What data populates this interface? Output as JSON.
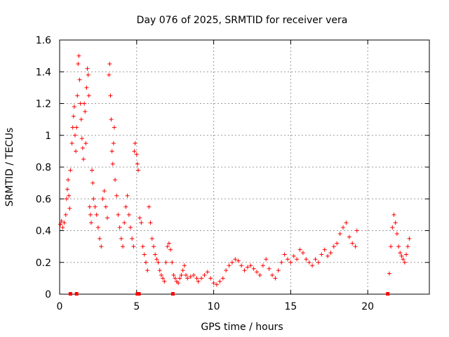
{
  "chart_data": {
    "type": "scatter",
    "title": "Day 076 of 2025, SRMTID for receiver vera",
    "xlabel": "GPS time / hours",
    "ylabel": "SRMTID / TECUs",
    "xlim": [
      0,
      24
    ],
    "ylim": [
      0,
      1.6
    ],
    "xticks": [
      0,
      5,
      10,
      15,
      20
    ],
    "yticks": [
      0,
      0.2,
      0.4,
      0.6,
      0.8,
      1,
      1.2,
      1.4,
      1.6
    ],
    "xtick_labels": [
      "0",
      "5",
      "10",
      "15",
      "20"
    ],
    "ytick_labels": [
      "0",
      "0.2",
      "0.4",
      "0.6",
      "0.8",
      "1",
      "1.2",
      "1.4",
      "1.6"
    ],
    "grid": true,
    "marker": "+",
    "color": "#ff0000",
    "series": [
      {
        "name": "SRMTID",
        "points": [
          [
            0.05,
            0.44
          ],
          [
            0.12,
            0.46
          ],
          [
            0.2,
            0.42
          ],
          [
            0.3,
            0.45
          ],
          [
            0.4,
            0.5
          ],
          [
            0.45,
            0.6
          ],
          [
            0.5,
            0.66
          ],
          [
            0.55,
            0.72
          ],
          [
            0.6,
            0.62
          ],
          [
            0.65,
            0.54
          ],
          [
            0.7,
            0.78
          ],
          [
            0.8,
            0.95
          ],
          [
            0.85,
            1.05
          ],
          [
            0.9,
            1.12
          ],
          [
            0.95,
            1.18
          ],
          [
            1.0,
            1.0
          ],
          [
            1.05,
            0.9
          ],
          [
            1.1,
            1.05
          ],
          [
            1.15,
            1.25
          ],
          [
            1.2,
            1.45
          ],
          [
            1.25,
            1.5
          ],
          [
            1.3,
            1.35
          ],
          [
            1.35,
            1.2
          ],
          [
            1.4,
            1.1
          ],
          [
            1.45,
            0.98
          ],
          [
            1.5,
            0.92
          ],
          [
            1.55,
            0.85
          ],
          [
            1.6,
            1.2
          ],
          [
            1.65,
            1.15
          ],
          [
            1.7,
            0.95
          ],
          [
            1.75,
            1.3
          ],
          [
            1.8,
            1.42
          ],
          [
            1.85,
            1.38
          ],
          [
            1.9,
            1.25
          ],
          [
            1.95,
            0.55
          ],
          [
            2.0,
            0.5
          ],
          [
            2.05,
            0.45
          ],
          [
            2.1,
            0.78
          ],
          [
            2.15,
            0.7
          ],
          [
            2.2,
            0.6
          ],
          [
            2.3,
            0.55
          ],
          [
            2.4,
            0.5
          ],
          [
            2.5,
            0.42
          ],
          [
            2.6,
            0.35
          ],
          [
            2.7,
            0.3
          ],
          [
            2.8,
            0.6
          ],
          [
            2.9,
            0.65
          ],
          [
            3.0,
            0.55
          ],
          [
            3.1,
            0.48
          ],
          [
            3.2,
            1.38
          ],
          [
            3.25,
            1.45
          ],
          [
            3.3,
            1.25
          ],
          [
            3.35,
            1.1
          ],
          [
            3.4,
            0.9
          ],
          [
            3.45,
            0.82
          ],
          [
            3.5,
            0.95
          ],
          [
            3.55,
            1.05
          ],
          [
            3.6,
            0.72
          ],
          [
            3.7,
            0.62
          ],
          [
            3.8,
            0.5
          ],
          [
            3.9,
            0.42
          ],
          [
            4.0,
            0.35
          ],
          [
            4.1,
            0.3
          ],
          [
            4.2,
            0.45
          ],
          [
            4.3,
            0.55
          ],
          [
            4.4,
            0.62
          ],
          [
            4.5,
            0.5
          ],
          [
            4.6,
            0.42
          ],
          [
            4.7,
            0.35
          ],
          [
            4.8,
            0.3
          ],
          [
            4.85,
            0.9
          ],
          [
            4.9,
            0.95
          ],
          [
            5.0,
            0.88
          ],
          [
            5.05,
            0.82
          ],
          [
            5.1,
            0.78
          ],
          [
            5.2,
            0.48
          ],
          [
            5.3,
            0.45
          ],
          [
            5.4,
            0.3
          ],
          [
            5.5,
            0.25
          ],
          [
            5.6,
            0.2
          ],
          [
            5.7,
            0.15
          ],
          [
            5.8,
            0.55
          ],
          [
            5.9,
            0.45
          ],
          [
            6.0,
            0.35
          ],
          [
            6.1,
            0.3
          ],
          [
            6.2,
            0.25
          ],
          [
            6.3,
            0.22
          ],
          [
            6.4,
            0.2
          ],
          [
            6.5,
            0.15
          ],
          [
            6.6,
            0.12
          ],
          [
            6.7,
            0.1
          ],
          [
            6.8,
            0.08
          ],
          [
            6.9,
            0.2
          ],
          [
            7.0,
            0.3
          ],
          [
            7.1,
            0.32
          ],
          [
            7.2,
            0.28
          ],
          [
            7.3,
            0.2
          ],
          [
            7.4,
            0.12
          ],
          [
            7.5,
            0.1
          ],
          [
            7.6,
            0.08
          ],
          [
            7.7,
            0.07
          ],
          [
            7.8,
            0.1
          ],
          [
            7.9,
            0.12
          ],
          [
            8.0,
            0.15
          ],
          [
            8.1,
            0.18
          ],
          [
            8.2,
            0.12
          ],
          [
            8.3,
            0.1
          ],
          [
            8.5,
            0.11
          ],
          [
            8.7,
            0.12
          ],
          [
            8.9,
            0.1
          ],
          [
            9.0,
            0.08
          ],
          [
            9.2,
            0.1
          ],
          [
            9.4,
            0.12
          ],
          [
            9.6,
            0.14
          ],
          [
            9.8,
            0.1
          ],
          [
            10.0,
            0.07
          ],
          [
            10.2,
            0.06
          ],
          [
            10.4,
            0.08
          ],
          [
            10.6,
            0.1
          ],
          [
            10.8,
            0.15
          ],
          [
            11.0,
            0.18
          ],
          [
            11.2,
            0.2
          ],
          [
            11.4,
            0.22
          ],
          [
            11.6,
            0.21
          ],
          [
            11.8,
            0.18
          ],
          [
            12.0,
            0.15
          ],
          [
            12.2,
            0.17
          ],
          [
            12.4,
            0.18
          ],
          [
            12.6,
            0.16
          ],
          [
            12.8,
            0.14
          ],
          [
            13.0,
            0.12
          ],
          [
            13.2,
            0.18
          ],
          [
            13.4,
            0.22
          ],
          [
            13.6,
            0.16
          ],
          [
            13.8,
            0.12
          ],
          [
            14.0,
            0.1
          ],
          [
            14.2,
            0.15
          ],
          [
            14.4,
            0.2
          ],
          [
            14.6,
            0.25
          ],
          [
            14.8,
            0.22
          ],
          [
            15.0,
            0.2
          ],
          [
            15.2,
            0.24
          ],
          [
            15.4,
            0.22
          ],
          [
            15.6,
            0.28
          ],
          [
            15.8,
            0.26
          ],
          [
            16.0,
            0.22
          ],
          [
            16.2,
            0.2
          ],
          [
            16.4,
            0.18
          ],
          [
            16.6,
            0.22
          ],
          [
            16.8,
            0.2
          ],
          [
            17.0,
            0.25
          ],
          [
            17.2,
            0.28
          ],
          [
            17.4,
            0.24
          ],
          [
            17.6,
            0.26
          ],
          [
            17.8,
            0.3
          ],
          [
            18.0,
            0.32
          ],
          [
            18.2,
            0.38
          ],
          [
            18.4,
            0.42
          ],
          [
            18.6,
            0.45
          ],
          [
            18.8,
            0.36
          ],
          [
            19.0,
            0.32
          ],
          [
            19.2,
            0.3
          ],
          [
            19.3,
            0.4
          ],
          [
            21.4,
            0.13
          ],
          [
            21.5,
            0.3
          ],
          [
            21.6,
            0.42
          ],
          [
            21.7,
            0.5
          ],
          [
            21.8,
            0.45
          ],
          [
            21.9,
            0.38
          ],
          [
            22.0,
            0.3
          ],
          [
            22.1,
            0.26
          ],
          [
            22.2,
            0.24
          ],
          [
            22.3,
            0.22
          ],
          [
            22.4,
            0.2
          ],
          [
            22.5,
            0.25
          ],
          [
            22.6,
            0.3
          ],
          [
            22.7,
            0.35
          ]
        ]
      }
    ],
    "gap_markers_x": [
      0.7,
      1.1,
      5.05,
      5.15,
      7.35,
      21.3
    ]
  }
}
